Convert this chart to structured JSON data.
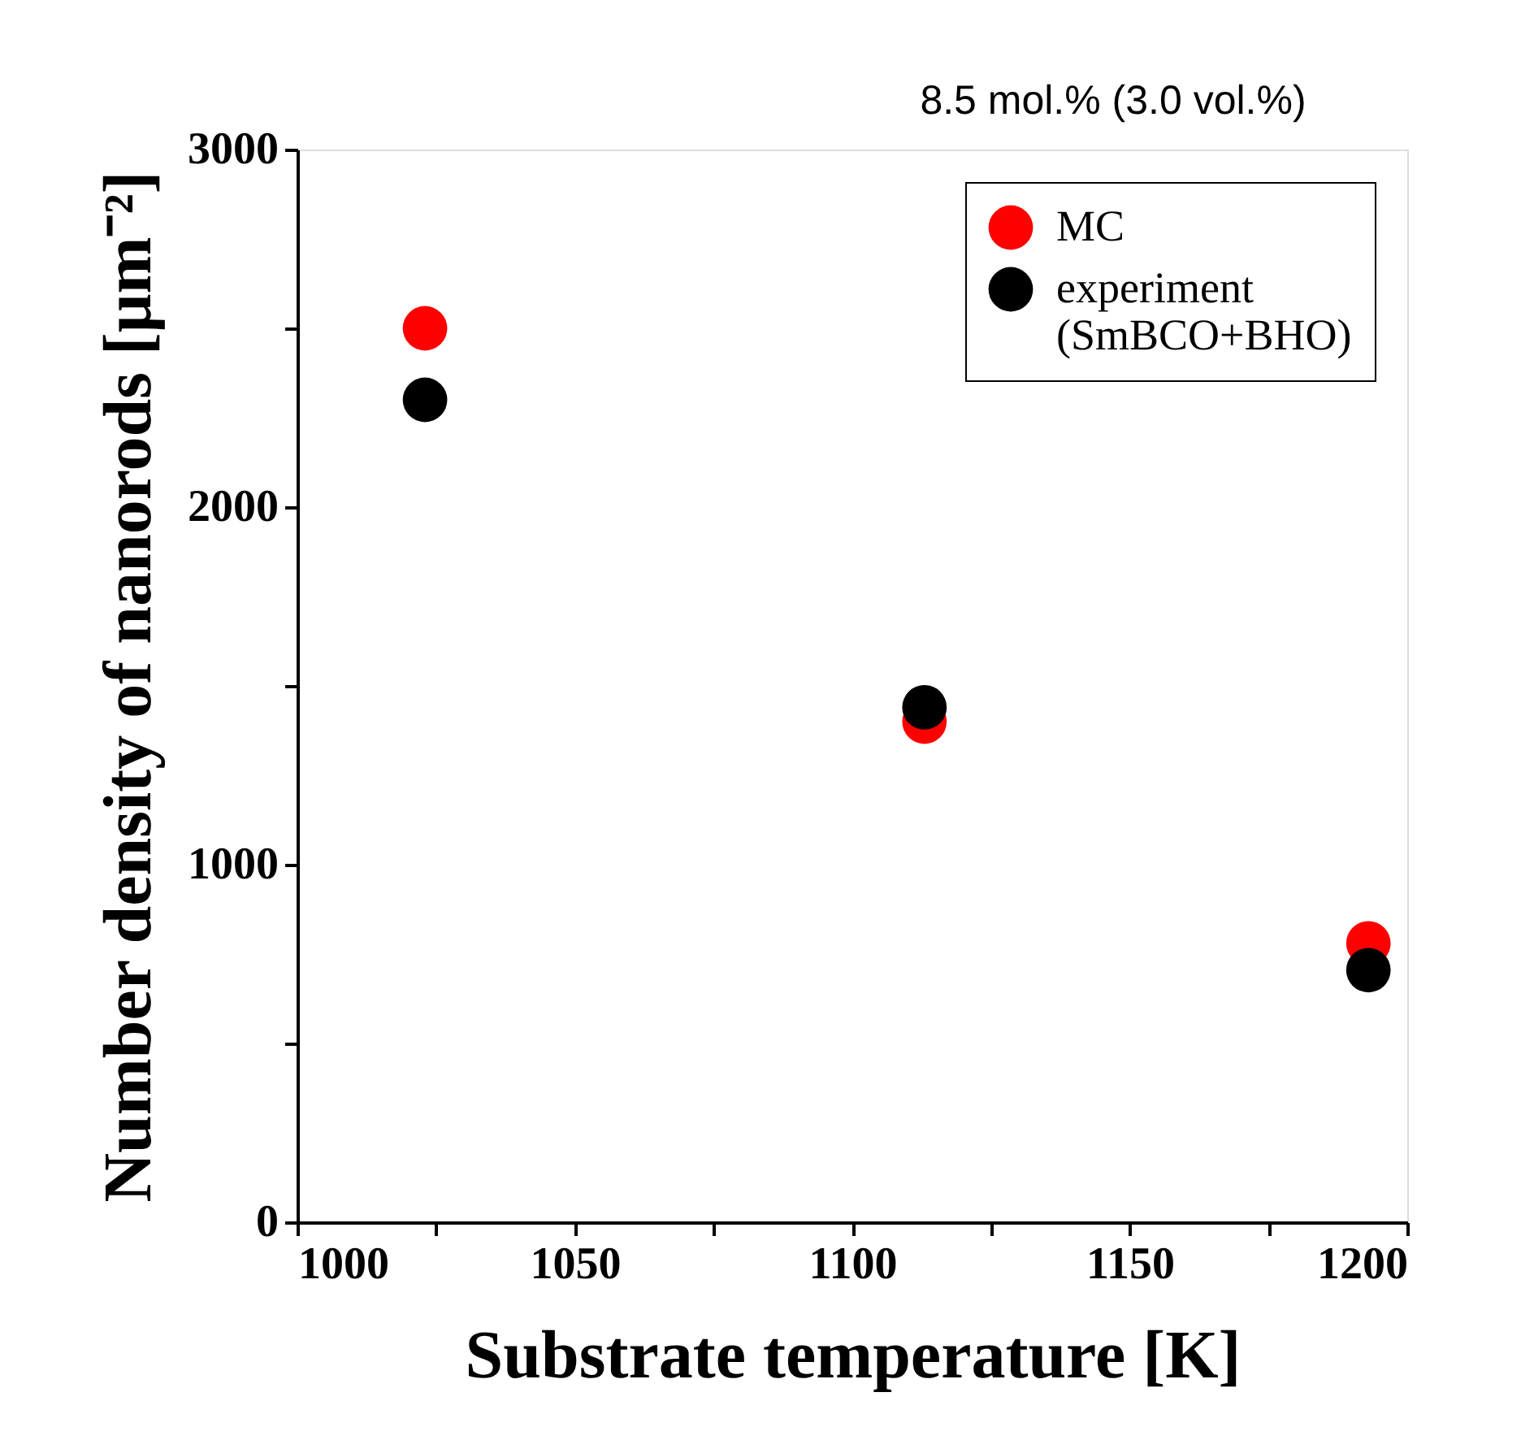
{
  "chart_data": {
    "type": "scatter",
    "xlabel": "Substrate temperature [K]",
    "ylabel": "Number density of nanorods [μm⁻²]",
    "annotations": [
      "8.5 mol.% (3.0 vol.%)"
    ],
    "series": [
      {
        "name": "MC",
        "color": "#ff0000",
        "x": [
          1023,
          1113,
          1193
        ],
        "values": [
          2500,
          1400,
          780
        ]
      },
      {
        "name": "experiment\n(SmBCO+BHO)",
        "color": "#000000",
        "x": [
          1023,
          1113,
          1193
        ],
        "values": [
          2300,
          1440,
          705
        ]
      }
    ],
    "xlim": [
      1000,
      1200
    ],
    "xticks": [
      1000,
      {
        "value": 1025,
        "label": null
      },
      1050,
      {
        "value": 1075,
        "label": null
      },
      1100,
      {
        "value": 1125,
        "label": null
      },
      1150,
      {
        "value": 1175,
        "label": null
      },
      1200
    ],
    "ylim": [
      0,
      3000
    ],
    "yticks": [
      0,
      {
        "value": 500,
        "label": null
      },
      1000,
      {
        "value": 1500,
        "label": null
      },
      2000,
      {
        "value": 2500,
        "label": null
      },
      3000
    ],
    "grid": false,
    "legend": "top right",
    "marker": "circle"
  }
}
